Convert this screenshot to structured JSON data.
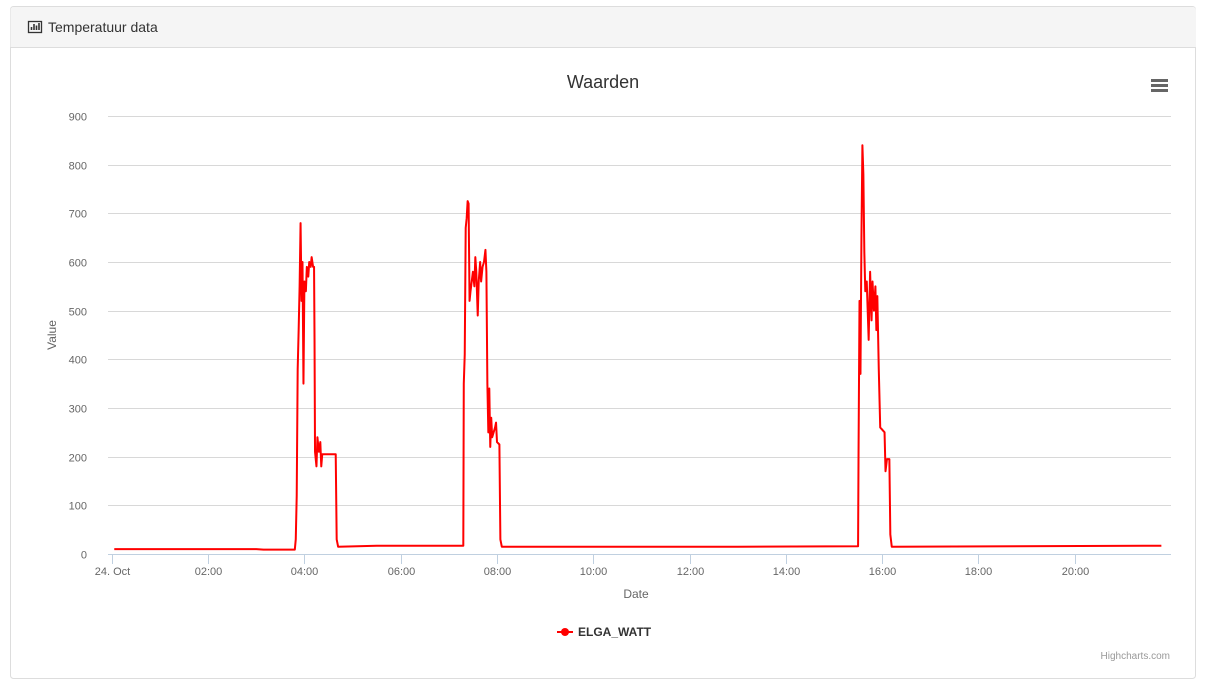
{
  "panel_title": "Temperatuur data",
  "chart_data": {
    "type": "line",
    "title": "Waarden",
    "x_label": "Date",
    "y_label": "Value",
    "credits": "Highcharts.com",
    "xlim": [
      -0.08,
      22
    ],
    "ylim": [
      0,
      900
    ],
    "yticks": [
      0,
      100,
      200,
      300,
      400,
      500,
      600,
      700,
      800,
      900
    ],
    "xticks": [
      {
        "value": 0,
        "label": "24. Oct"
      },
      {
        "value": 2,
        "label": "02:00"
      },
      {
        "value": 4,
        "label": "04:00"
      },
      {
        "value": 6,
        "label": "06:00"
      },
      {
        "value": 8,
        "label": "08:00"
      },
      {
        "value": 10,
        "label": "10:00"
      },
      {
        "value": 12,
        "label": "12:00"
      },
      {
        "value": 14,
        "label": "14:00"
      },
      {
        "value": 16,
        "label": "16:00"
      },
      {
        "value": 18,
        "label": "18:00"
      },
      {
        "value": 20,
        "label": "20:00"
      }
    ],
    "grid": true,
    "legend": "bottom",
    "x": [
      0.05,
      3.0,
      3.15,
      3.8,
      3.82,
      3.84,
      3.86,
      3.88,
      3.9,
      3.92,
      3.94,
      3.96,
      3.98,
      4.0,
      4.03,
      4.05,
      4.08,
      4.1,
      4.13,
      4.15,
      4.18,
      4.2,
      4.21,
      4.22,
      4.25,
      4.27,
      4.3,
      4.33,
      4.35,
      4.37,
      4.6,
      4.65,
      4.67,
      4.7,
      5.5,
      7.3,
      7.31,
      7.33,
      7.35,
      7.37,
      7.39,
      7.41,
      7.43,
      7.45,
      7.5,
      7.53,
      7.55,
      7.57,
      7.6,
      7.62,
      7.65,
      7.67,
      7.7,
      7.73,
      7.76,
      7.78,
      7.8,
      7.82,
      7.84,
      7.86,
      7.88,
      7.9,
      7.93,
      7.96,
      7.98,
      8.0,
      8.05,
      8.07,
      8.1,
      13.0,
      15.5,
      15.51,
      15.53,
      15.55,
      15.57,
      15.59,
      15.61,
      15.63,
      15.65,
      15.68,
      15.7,
      15.72,
      15.75,
      15.78,
      15.8,
      15.83,
      15.86,
      15.88,
      15.9,
      15.93,
      15.96,
      16.05,
      16.07,
      16.1,
      16.15,
      16.17,
      16.2,
      21.8
    ],
    "series": [
      {
        "name": "ELGA_WATT",
        "color": "#ff0000",
        "values": [
          10,
          10,
          9,
          9,
          30,
          120,
          380,
          460,
          550,
          680,
          520,
          600,
          350,
          560,
          540,
          590,
          570,
          600,
          590,
          610,
          590,
          590,
          440,
          210,
          180,
          240,
          210,
          230,
          180,
          205,
          205,
          205,
          30,
          15,
          17,
          17,
          350,
          410,
          670,
          690,
          725,
          720,
          520,
          540,
          580,
          550,
          610,
          580,
          490,
          560,
          600,
          560,
          590,
          600,
          625,
          580,
          350,
          250,
          340,
          220,
          280,
          240,
          250,
          260,
          270,
          230,
          225,
          30,
          15,
          15,
          16,
          210,
          520,
          370,
          650,
          840,
          780,
          620,
          540,
          560,
          500,
          440,
          580,
          480,
          560,
          500,
          550,
          460,
          530,
          380,
          260,
          250,
          170,
          195,
          195,
          40,
          15,
          17
        ]
      }
    ]
  }
}
